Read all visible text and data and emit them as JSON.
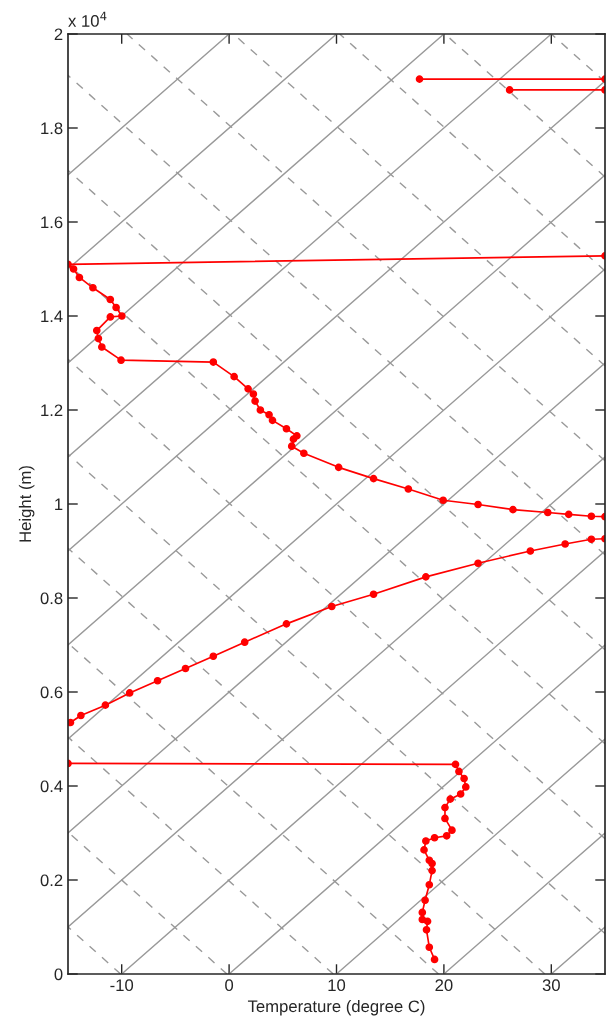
{
  "chart_data": {
    "type": "line",
    "xlabel": "Temperature (degree C)",
    "ylabel": "Height (m)",
    "annotations": [
      "x 10$^{4}$"
    ],
    "xlim": [
      -15,
      35
    ],
    "xticks": [
      -10,
      0,
      10,
      20,
      30
    ],
    "ylim": [
      0,
      2
    ],
    "yticks": [
      0,
      0.2,
      0.4,
      0.6,
      0.8,
      1,
      1.2,
      1.4,
      1.6,
      1.8,
      2
    ],
    "grid": false,
    "legend": false,
    "series": [
      {
        "color": "#999999",
        "line_style": "solid",
        "marker": "none",
        "x": [
          -15,
          0
        ],
        "values": [
          1.7,
          2
        ]
      },
      {
        "color": "#999999",
        "line_style": "solid",
        "marker": "none",
        "x": [
          -15,
          10
        ],
        "values": [
          1.5,
          2
        ]
      },
      {
        "color": "#999999",
        "line_style": "solid",
        "marker": "none",
        "x": [
          -15,
          20
        ],
        "values": [
          1.3,
          2
        ]
      },
      {
        "color": "#999999",
        "line_style": "solid",
        "marker": "none",
        "x": [
          -15,
          30
        ],
        "values": [
          1.1,
          2
        ]
      },
      {
        "color": "#999999",
        "line_style": "solid",
        "marker": "none",
        "x": [
          -15,
          35
        ],
        "values": [
          0.9,
          1.9
        ]
      },
      {
        "color": "#999999",
        "line_style": "solid",
        "marker": "none",
        "x": [
          -15,
          35
        ],
        "values": [
          0.7,
          1.7
        ]
      },
      {
        "color": "#999999",
        "line_style": "solid",
        "marker": "none",
        "x": [
          -15,
          35
        ],
        "values": [
          0.5,
          1.5
        ]
      },
      {
        "color": "#999999",
        "line_style": "solid",
        "marker": "none",
        "x": [
          -15,
          35
        ],
        "values": [
          0.3,
          1.3
        ]
      },
      {
        "color": "#999999",
        "line_style": "solid",
        "marker": "none",
        "x": [
          -15,
          35
        ],
        "values": [
          0.1,
          1.1
        ]
      },
      {
        "color": "#999999",
        "line_style": "solid",
        "marker": "none",
        "x": [
          -10,
          35
        ],
        "values": [
          0,
          0.9
        ]
      },
      {
        "color": "#999999",
        "line_style": "solid",
        "marker": "none",
        "x": [
          0,
          35
        ],
        "values": [
          0,
          0.7
        ]
      },
      {
        "color": "#999999",
        "line_style": "solid",
        "marker": "none",
        "x": [
          10,
          35
        ],
        "values": [
          0,
          0.5
        ]
      },
      {
        "color": "#999999",
        "line_style": "solid",
        "marker": "none",
        "x": [
          20,
          35
        ],
        "values": [
          0,
          0.3
        ]
      },
      {
        "color": "#999999",
        "line_style": "solid",
        "marker": "none",
        "x": [
          30,
          35
        ],
        "values": [
          0,
          0.1
        ]
      },
      {
        "color": "#999999",
        "line_style": "dashed",
        "marker": "none",
        "x": [
          -10.1,
          -15
        ],
        "values": [
          0,
          0.1
        ]
      },
      {
        "color": "#999999",
        "line_style": "dashed",
        "marker": "none",
        "x": [
          -0.2,
          -15
        ],
        "values": [
          0,
          0.302
        ]
      },
      {
        "color": "#999999",
        "line_style": "dashed",
        "marker": "none",
        "x": [
          9.7,
          -15
        ],
        "values": [
          0,
          0.504
        ]
      },
      {
        "color": "#999999",
        "line_style": "dashed",
        "marker": "none",
        "x": [
          19.5,
          -15
        ],
        "values": [
          0,
          0.704
        ]
      },
      {
        "color": "#999999",
        "line_style": "dashed",
        "marker": "none",
        "x": [
          29.4,
          -15
        ],
        "values": [
          0,
          0.906
        ]
      },
      {
        "color": "#999999",
        "line_style": "dashed",
        "marker": "none",
        "x": [
          35,
          -15
        ],
        "values": [
          0.086,
          1.106
        ]
      },
      {
        "color": "#999999",
        "line_style": "dashed",
        "marker": "none",
        "x": [
          35,
          -15
        ],
        "values": [
          0.288,
          1.308
        ]
      },
      {
        "color": "#999999",
        "line_style": "dashed",
        "marker": "none",
        "x": [
          35,
          -15
        ],
        "values": [
          0.49,
          1.51
        ]
      },
      {
        "color": "#999999",
        "line_style": "dashed",
        "marker": "none",
        "x": [
          35,
          -15
        ],
        "values": [
          0.69,
          1.71
        ]
      },
      {
        "color": "#999999",
        "line_style": "dashed",
        "marker": "none",
        "x": [
          35,
          -15
        ],
        "values": [
          0.892,
          1.912
        ]
      },
      {
        "color": "#999999",
        "line_style": "dashed",
        "marker": "none",
        "x": [
          35,
          -9.5
        ],
        "values": [
          1.092,
          2
        ]
      },
      {
        "color": "#999999",
        "line_style": "dashed",
        "marker": "none",
        "x": [
          35,
          0.4
        ],
        "values": [
          1.294,
          2
        ]
      },
      {
        "color": "#999999",
        "line_style": "dashed",
        "marker": "none",
        "x": [
          35,
          10.3
        ],
        "values": [
          1.496,
          2
        ]
      },
      {
        "color": "#999999",
        "line_style": "dashed",
        "marker": "none",
        "x": [
          35,
          20.1
        ],
        "values": [
          1.696,
          2
        ]
      },
      {
        "color": "#999999",
        "line_style": "dashed",
        "marker": "none",
        "x": [
          35,
          30.0
        ],
        "values": [
          1.898,
          2
        ]
      },
      {
        "color": "#ff0000",
        "line_style": "solid",
        "marker": "circle",
        "x": [
          19.13,
          18.64,
          18.38,
          18.48,
          17.99,
          17.99,
          18.25,
          18.64,
          18.9,
          18.9,
          18.64,
          18.15,
          18.32,
          19.13,
          20.26,
          20.75,
          20.1,
          20.1,
          20.59,
          21.56,
          22.04,
          21.88,
          21.4,
          21.08,
          -15
        ],
        "values": [
          0.031,
          0.057,
          0.094,
          0.112,
          0.116,
          0.131,
          0.157,
          0.19,
          0.22,
          0.235,
          0.242,
          0.264,
          0.283,
          0.29,
          0.294,
          0.306,
          0.331,
          0.354,
          0.372,
          0.383,
          0.398,
          0.416,
          0.431,
          0.446,
          0.448
        ]
      },
      {
        "color": "#ff0000",
        "line_style": "solid",
        "marker": "circle",
        "x": [
          -14.77,
          -13.8,
          -11.52,
          -9.26,
          -6.66,
          -4.06,
          -1.47,
          1.45,
          5.34,
          9.56,
          13.45,
          18.32,
          23.18,
          28.05,
          31.29,
          33.73,
          35
        ],
        "values": [
          0.535,
          0.55,
          0.572,
          0.598,
          0.624,
          0.65,
          0.676,
          0.706,
          0.745,
          0.782,
          0.808,
          0.845,
          0.874,
          0.9,
          0.915,
          0.925,
          0.926
        ]
      },
      {
        "color": "#ff0000",
        "line_style": "solid",
        "marker": "circle",
        "x": [
          35,
          33.73,
          31.62,
          29.67,
          26.43,
          23.18,
          19.93,
          16.69,
          13.45,
          10.2,
          6.96,
          5.83,
          5.99,
          6.31,
          5.34,
          4.04,
          3.72,
          2.91,
          2.42,
          2.26,
          1.77,
          0.47,
          -1.47,
          -10.06,
          -11.85,
          -12.17,
          -12.32,
          -11.06,
          -9.98,
          -10.52,
          -11.06,
          -12.68,
          -13.94,
          -14.48,
          -15,
          35
        ],
        "values": [
          0.973,
          0.974,
          0.978,
          0.982,
          0.988,
          0.999,
          1.008,
          1.032,
          1.054,
          1.078,
          1.108,
          1.123,
          1.138,
          1.145,
          1.16,
          1.178,
          1.19,
          1.2,
          1.219,
          1.234,
          1.245,
          1.271,
          1.302,
          1.306,
          1.334,
          1.352,
          1.369,
          1.398,
          1.4,
          1.418,
          1.435,
          1.46,
          1.482,
          1.5,
          1.51,
          1.528
        ]
      },
      {
        "color": "#ff0000",
        "line_style": "solid",
        "marker": "circle",
        "x": [
          17.73,
          35
        ],
        "values": [
          1.904,
          1.904
        ]
      },
      {
        "color": "#ff0000",
        "line_style": "solid",
        "marker": "circle",
        "x": [
          26.12,
          35
        ],
        "values": [
          1.881,
          1.881
        ]
      }
    ]
  }
}
